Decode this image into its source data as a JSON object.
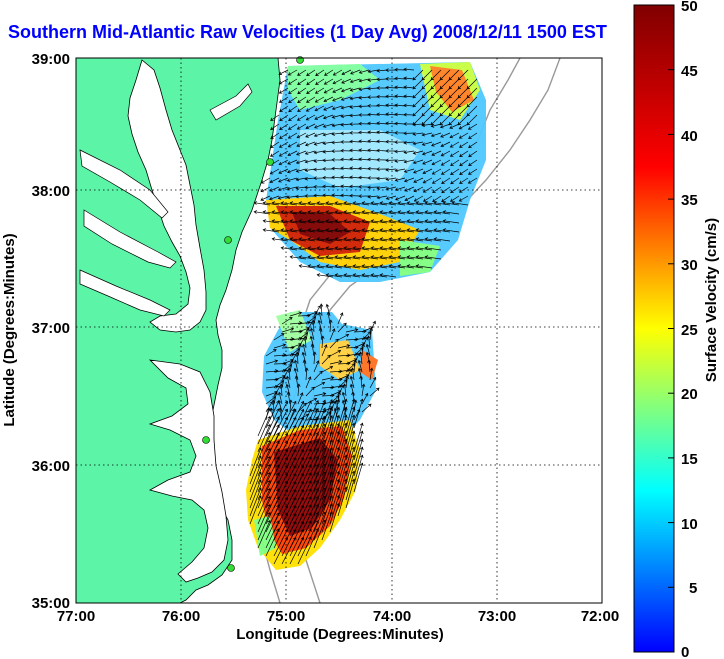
{
  "title": "Southern Mid-Atlantic Raw Velocities (1 Day Avg) 2008/12/11 1500 EST",
  "x_axis": {
    "label": "Longitude (Degrees:Minutes)",
    "ticks": [
      "77:00",
      "76:00",
      "75:00",
      "74:00",
      "73:00",
      "72:00"
    ]
  },
  "y_axis": {
    "label": "Latitude (Degrees:Minutes)",
    "ticks": [
      "39:00",
      "38:00",
      "37:00",
      "36:00",
      "35:00"
    ]
  },
  "colorbar": {
    "label": "Surface Velocity (cm/s)",
    "ticks": [
      "50",
      "45",
      "40",
      "35",
      "30",
      "25",
      "20",
      "15",
      "10",
      "5",
      "0"
    ],
    "min": 0,
    "max": 50
  },
  "colors": {
    "land": "#5cf5a8",
    "title": "#0000ff",
    "station": "#33dd33"
  },
  "map": {
    "lon_range": [
      -77,
      -72
    ],
    "lat_range": [
      35,
      39
    ],
    "grid": true
  },
  "chart_data": {
    "type": "heatmap",
    "title": "Southern Mid-Atlantic Raw Velocities (1 Day Avg) 2008/12/11 1500 EST",
    "xlabel": "Longitude (Degrees:Minutes)",
    "ylabel": "Latitude (Degrees:Minutes)",
    "xlim": [
      -77,
      -72
    ],
    "ylim": [
      35,
      39
    ],
    "colorbar_range": [
      0,
      50
    ],
    "stations": [
      {
        "lon": -74.9,
        "lat": 39.0
      },
      {
        "lon": -75.15,
        "lat": 38.23
      },
      {
        "lon": -75.5,
        "lat": 37.85
      },
      {
        "lon": -75.75,
        "lat": 36.2
      },
      {
        "lon": -75.5,
        "lat": 35.25
      }
    ]
  }
}
